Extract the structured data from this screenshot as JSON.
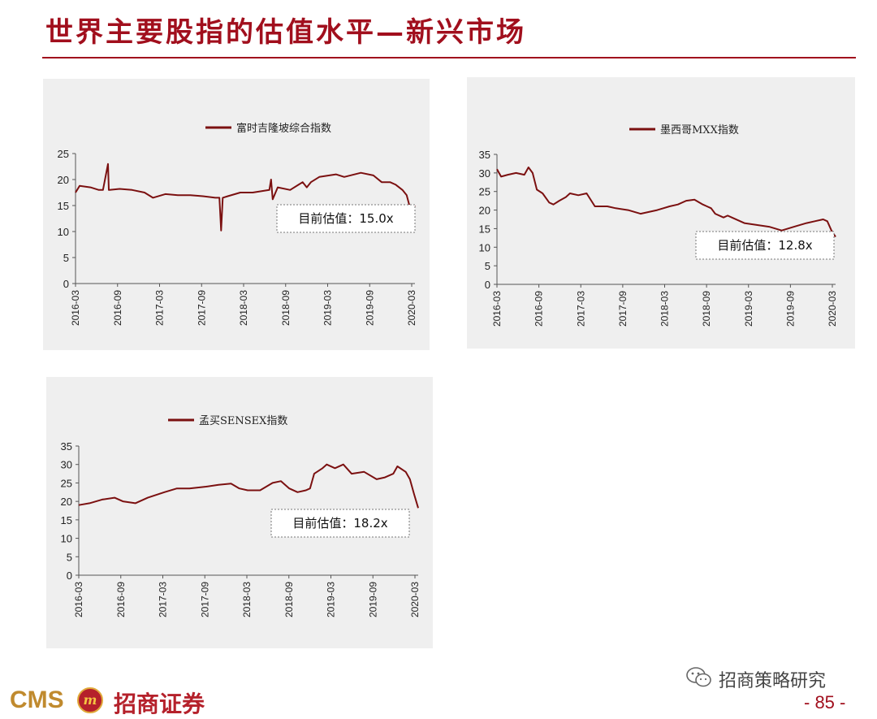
{
  "page": {
    "title": "世界主要股指的估值水平—新兴市场",
    "footer_logo_latin": "CMS",
    "footer_logo_badge": "m",
    "footer_logo_cn": "招商证券",
    "wechat_label": "招商策略研究",
    "page_number": "- 85 -"
  },
  "colors": {
    "accent": "#a10f1d",
    "line": "#7b1010",
    "panel_bg": "#efefef",
    "logo_gold": "#c08a2e"
  },
  "icons": [
    "wechat-icon",
    "cms-logo-badge"
  ],
  "chart_data": [
    {
      "type": "line",
      "legend": "富时吉隆坡综合指数",
      "annotation": "目前估值：15.0x",
      "ylim": [
        0,
        25
      ],
      "yticks": [
        "0",
        "5",
        "10",
        "15",
        "20",
        "25"
      ],
      "xticks": [
        "2016-03",
        "2016-09",
        "2017-03",
        "2017-09",
        "2018-03",
        "2018-09",
        "2019-03",
        "2019-09",
        "2020-03"
      ],
      "x_range": [
        2016.17,
        2020.25
      ],
      "series": [
        {
          "x": [
            2016.17,
            2016.22,
            2016.35,
            2016.45,
            2016.5,
            2016.56,
            2016.57,
            2016.58,
            2016.7,
            2016.85,
            2017.0,
            2017.1,
            2017.25,
            2017.4,
            2017.55,
            2017.7,
            2017.85,
            2017.9,
            2017.92,
            2017.94,
            2018.0,
            2018.15,
            2018.3,
            2018.5,
            2018.52,
            2018.54,
            2018.6,
            2018.75,
            2018.85,
            2018.9,
            2018.95,
            2019.0,
            2019.1,
            2019.3,
            2019.4,
            2019.6,
            2019.75,
            2019.85,
            2019.95,
            2020.02,
            2020.1,
            2020.15,
            2020.2,
            2020.25
          ],
          "y": [
            17.5,
            18.8,
            18.5,
            18.0,
            18.0,
            23.0,
            18.0,
            18.0,
            18.2,
            18.0,
            17.5,
            16.5,
            17.2,
            17.0,
            17.0,
            16.8,
            16.5,
            16.5,
            10.2,
            16.5,
            16.8,
            17.5,
            17.5,
            18.0,
            20.0,
            16.2,
            18.5,
            18.0,
            19.0,
            19.5,
            18.5,
            19.5,
            20.5,
            21.0,
            20.5,
            21.3,
            20.8,
            19.5,
            19.5,
            19.0,
            18.0,
            17.0,
            14.0,
            15.0
          ]
        }
      ]
    },
    {
      "type": "line",
      "legend": "墨西哥MXX指数",
      "annotation": "目前估值：12.8x",
      "ylim": [
        0,
        35
      ],
      "yticks": [
        "0",
        "5",
        "10",
        "15",
        "20",
        "25",
        "30",
        "35"
      ],
      "xticks": [
        "2016-03",
        "2016-09",
        "2017-03",
        "2017-09",
        "2018-03",
        "2018-09",
        "2019-03",
        "2019-09",
        "2020-03"
      ],
      "x_range": [
        2016.17,
        2020.25
      ],
      "series": [
        {
          "x": [
            2016.17,
            2016.22,
            2016.3,
            2016.4,
            2016.5,
            2016.55,
            2016.6,
            2016.65,
            2016.72,
            2016.8,
            2016.85,
            2016.92,
            2017.0,
            2017.05,
            2017.15,
            2017.25,
            2017.35,
            2017.5,
            2017.6,
            2017.75,
            2017.9,
            2018.0,
            2018.1,
            2018.25,
            2018.35,
            2018.45,
            2018.55,
            2018.65,
            2018.7,
            2018.75,
            2018.8,
            2018.9,
            2018.95,
            2019.0,
            2019.15,
            2019.3,
            2019.45,
            2019.6,
            2019.75,
            2019.9,
            2020.0,
            2020.1,
            2020.15,
            2020.2,
            2020.25
          ],
          "y": [
            31.0,
            29.0,
            29.5,
            30.0,
            29.5,
            31.5,
            30.0,
            25.5,
            24.5,
            22.0,
            21.5,
            22.5,
            23.5,
            24.5,
            24.0,
            24.5,
            21.0,
            21.0,
            20.5,
            20.0,
            19.0,
            19.5,
            20.0,
            21.0,
            21.5,
            22.5,
            22.8,
            21.5,
            21.0,
            20.5,
            19.0,
            18.0,
            18.5,
            18.0,
            16.5,
            16.0,
            15.5,
            14.5,
            15.5,
            16.5,
            17.0,
            17.5,
            17.0,
            14.5,
            12.8
          ]
        }
      ]
    },
    {
      "type": "line",
      "legend": "孟买SENSEX指数",
      "annotation": "目前估值：18.2x",
      "ylim": [
        0,
        35
      ],
      "yticks": [
        "0",
        "5",
        "10",
        "15",
        "20",
        "25",
        "30",
        "35"
      ],
      "xticks": [
        "2016-03",
        "2016-09",
        "2017-03",
        "2017-09",
        "2018-03",
        "2018-09",
        "2019-03",
        "2019-09",
        "2020-03"
      ],
      "x_range": [
        2016.17,
        2020.25
      ],
      "series": [
        {
          "x": [
            2016.17,
            2016.3,
            2016.45,
            2016.6,
            2016.7,
            2016.85,
            2017.0,
            2017.2,
            2017.35,
            2017.5,
            2017.7,
            2017.85,
            2018.0,
            2018.1,
            2018.2,
            2018.35,
            2018.5,
            2018.6,
            2018.7,
            2018.8,
            2018.9,
            2018.95,
            2019.0,
            2019.1,
            2019.15,
            2019.25,
            2019.35,
            2019.45,
            2019.6,
            2019.75,
            2019.85,
            2019.95,
            2020.0,
            2020.1,
            2020.15,
            2020.2,
            2020.25
          ],
          "y": [
            19.0,
            19.5,
            20.5,
            21.0,
            20.0,
            19.5,
            21.0,
            22.5,
            23.5,
            23.5,
            24.0,
            24.5,
            24.8,
            23.5,
            23.0,
            23.0,
            25.0,
            25.5,
            23.5,
            22.5,
            23.0,
            23.5,
            27.5,
            29.0,
            30.0,
            29.0,
            30.0,
            27.5,
            28.0,
            26.0,
            26.5,
            27.5,
            29.5,
            28.0,
            26.0,
            22.0,
            18.2
          ]
        }
      ]
    }
  ]
}
